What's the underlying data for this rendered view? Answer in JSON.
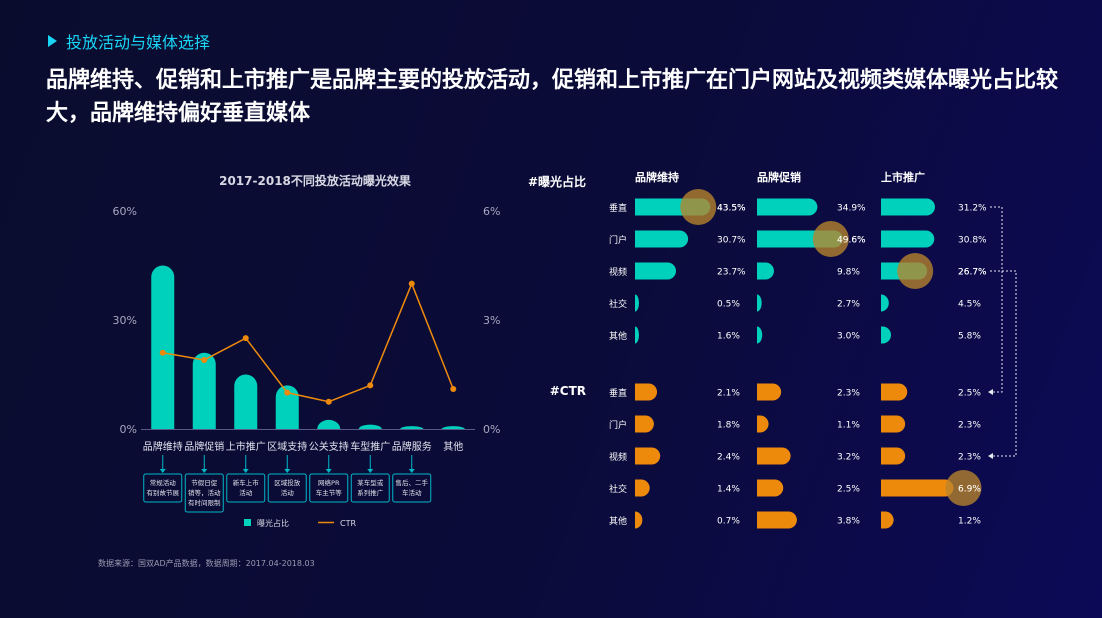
{
  "section_title": "投放活动与媒体选择",
  "headline": "品牌维持、促销和上市推广是品牌主要的投放活动，促销和上市推广在门户网站及视频类媒体曝光占比较大，品牌维持偏好垂直媒体",
  "source_note": "数据来源：国双AD产品数据，数据周期：2017.04-2018.03",
  "colors": {
    "teal": "#00d1bd",
    "orange": "#ee8a0b",
    "highlight": "#b8842b",
    "background": "#0b0b3a"
  },
  "chart_data": [
    {
      "type": "bar",
      "title": "2017-2018不同投放活动曝光效果",
      "categories": [
        "品牌维持",
        "品牌促销",
        "上市推广",
        "区域支持",
        "公关支持",
        "车型推广",
        "品牌服务",
        "其他"
      ],
      "notes": [
        "常规活动\n有别故节展",
        "节假日促\n销等，活动\n有时间限制",
        "新车上市\n活动",
        "区域投放\n活动",
        "网络PR\n车主节等",
        "某车型或\n系列推广",
        "售后、二手\n车活动",
        ""
      ],
      "series": [
        {
          "name": "曝光占比",
          "type": "bar",
          "axis": "left",
          "values": [
            45,
            21,
            15,
            12,
            2.5,
            1.2,
            0.8,
            0.8
          ]
        },
        {
          "name": "CTR",
          "type": "line",
          "axis": "right",
          "values": [
            2.1,
            1.9,
            2.5,
            1.0,
            0.75,
            1.2,
            4.0,
            1.1
          ]
        }
      ],
      "ylim_left": [
        0,
        60
      ],
      "ylim_right": [
        0,
        6
      ],
      "left_ticks": [
        "0%",
        "30%",
        "60%"
      ],
      "right_ticks": [
        "0%",
        "3%",
        "6%"
      ],
      "legend": "bottom"
    },
    {
      "type": "bar",
      "orientation": "horizontal",
      "groups": [
        "品牌维持",
        "品牌促销",
        "上市推广"
      ],
      "media": [
        "垂直",
        "门户",
        "视频",
        "社交",
        "其他"
      ],
      "exposure": {
        "label": "#曝光占比",
        "values": [
          [
            43.5,
            30.7,
            23.7,
            0.5,
            1.6
          ],
          [
            34.9,
            49.6,
            9.8,
            2.7,
            3.0
          ],
          [
            31.2,
            30.8,
            26.7,
            4.5,
            5.8
          ]
        ],
        "labels": [
          [
            "43.5%",
            "30.7%",
            "23.7%",
            "0.5%",
            "1.6%"
          ],
          [
            "34.9%",
            "49.6%",
            "9.8%",
            "2.7%",
            "3.0%"
          ],
          [
            "31.2%",
            "30.8%",
            "26.7%",
            "4.5%",
            "5.8%"
          ]
        ],
        "highlight": [
          [
            true,
            false,
            false,
            false,
            false
          ],
          [
            false,
            true,
            false,
            false,
            false
          ],
          [
            false,
            false,
            true,
            false,
            false
          ]
        ]
      },
      "ctr": {
        "label": "#CTR",
        "values": [
          [
            2.1,
            1.8,
            2.4,
            1.4,
            0.7
          ],
          [
            2.3,
            1.1,
            3.2,
            2.5,
            3.8
          ],
          [
            2.5,
            2.3,
            2.3,
            6.9,
            1.2
          ]
        ],
        "labels": [
          [
            "2.1%",
            "1.8%",
            "2.4%",
            "1.4%",
            "0.7%"
          ],
          [
            "2.3%",
            "1.1%",
            "3.2%",
            "2.5%",
            "3.8%"
          ],
          [
            "2.5%",
            "2.3%",
            "2.3%",
            "6.9%",
            "1.2%"
          ]
        ],
        "highlight": [
          [
            false,
            false,
            false,
            false,
            false
          ],
          [
            false,
            false,
            false,
            false,
            false
          ],
          [
            false,
            false,
            false,
            true,
            false
          ]
        ]
      }
    }
  ]
}
